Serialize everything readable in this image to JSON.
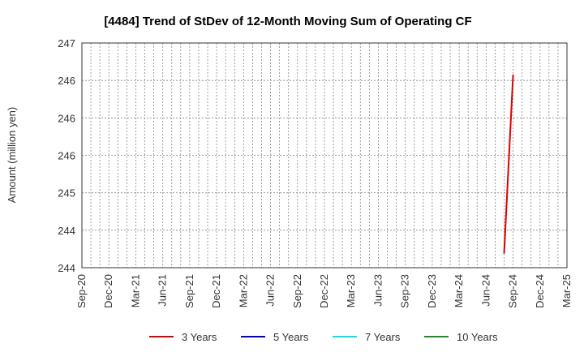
{
  "chart_data": {
    "type": "line",
    "title": "[4484]  Trend of StDev of 12-Month Moving Sum of Operating CF",
    "xlabel": "",
    "ylabel": "Amount (million yen)",
    "x_tick_labels": [
      "Sep-20",
      "Dec-20",
      "Mar-21",
      "Jun-21",
      "Sep-21",
      "Dec-21",
      "Mar-22",
      "Jun-22",
      "Sep-22",
      "Dec-22",
      "Mar-23",
      "Jun-23",
      "Sep-23",
      "Dec-23",
      "Mar-24",
      "Jun-24",
      "Sep-24",
      "Dec-24",
      "Mar-25"
    ],
    "y_tick_labels": [
      "244",
      "244",
      "245",
      "246",
      "246",
      "246",
      "247"
    ],
    "ylim": [
      243.8,
      247.0
    ],
    "grid": true,
    "legend_position": "bottom",
    "series": [
      {
        "name": "3 Years",
        "color": "#dd0000",
        "points": [
          {
            "x": "Aug-24",
            "y": 244.0
          },
          {
            "x": "Sep-24",
            "y": 246.55
          }
        ]
      },
      {
        "name": "5 Years",
        "color": "#0000cc",
        "points": []
      },
      {
        "name": "7 Years",
        "color": "#00e5ee",
        "points": []
      },
      {
        "name": "10 Years",
        "color": "#228b22",
        "points": []
      }
    ]
  }
}
